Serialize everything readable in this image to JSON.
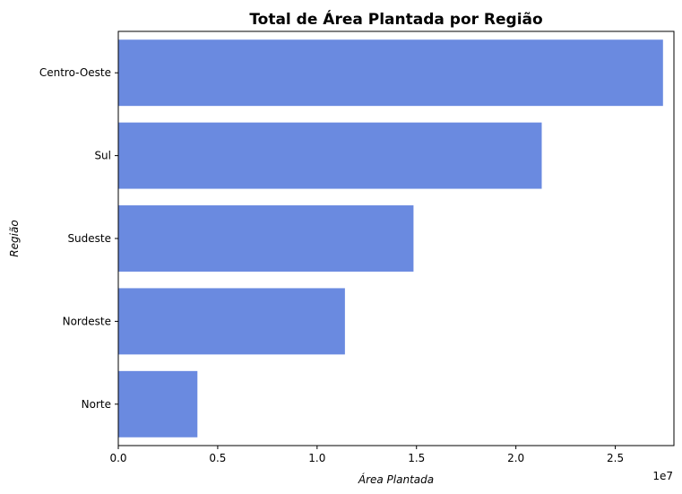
{
  "chart_data": {
    "type": "bar",
    "orientation": "horizontal",
    "title": "Total de Área Plantada por Região",
    "xlabel": "Área Plantada",
    "ylabel": "Região",
    "categories": [
      "Centro-Oeste",
      "Sul",
      "Sudeste",
      "Nordeste",
      "Norte"
    ],
    "values": [
      27400000,
      21300000,
      14850000,
      11400000,
      3980000
    ],
    "xlim": [
      0,
      27950000
    ],
    "x_ticks": [
      0,
      5000000,
      10000000,
      15000000,
      20000000,
      25000000
    ],
    "x_tick_labels": [
      "0.0",
      "0.5",
      "1.0",
      "1.5",
      "2.0",
      "2.5"
    ],
    "x_offset_label": "1e7",
    "bar_color": "#6a8ae0",
    "grid": false,
    "legend": "none"
  }
}
